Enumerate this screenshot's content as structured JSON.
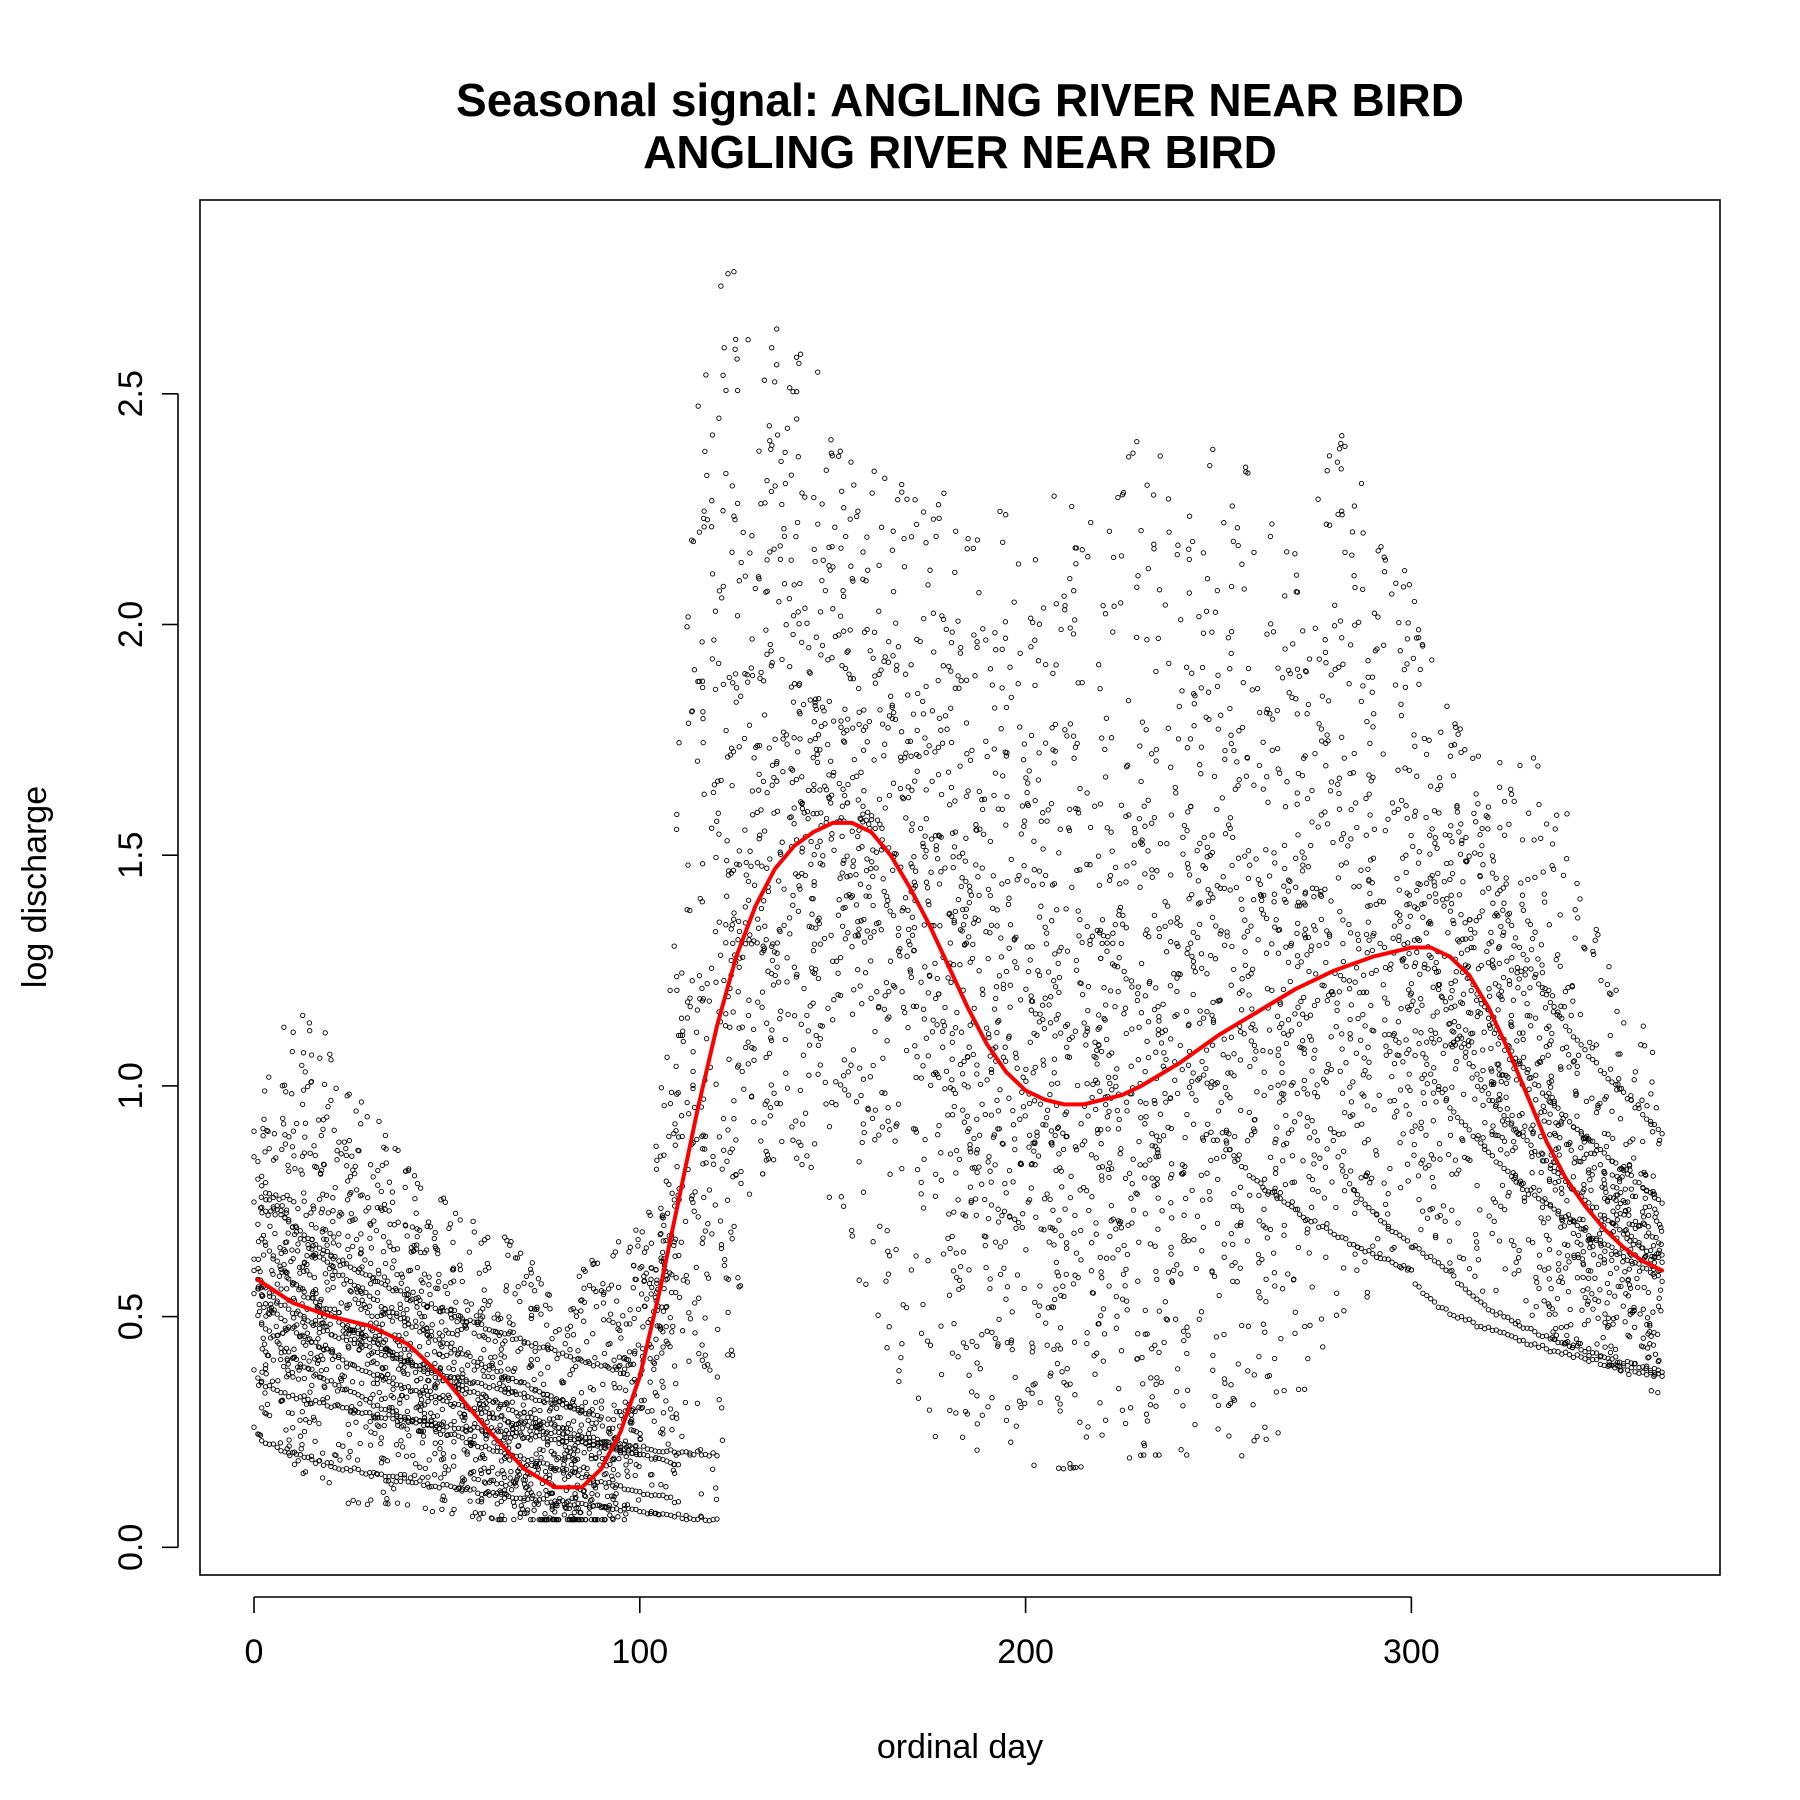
{
  "chart_data": {
    "type": "scatter",
    "title": "Seasonal signal: ANGLING RIVER NEAR BIRD",
    "subtitle": "ANGLING RIVER NEAR BIRD",
    "xlabel": "ordinal day",
    "ylabel": "log discharge",
    "xlim": [
      -14,
      380
    ],
    "ylim": [
      -0.06,
      2.92
    ],
    "xticks": [
      0,
      100,
      200,
      300
    ],
    "yticks": [
      0.0,
      0.5,
      1.0,
      1.5,
      2.0,
      2.5
    ],
    "xtick_labels": [
      "0",
      "100",
      "200",
      "300"
    ],
    "ytick_labels": [
      "0.0",
      "0.5",
      "1.0",
      "1.5",
      "2.0",
      "2.5"
    ],
    "grid": false,
    "point_color": "#000000",
    "curve_color": "#ff0000",
    "fit_curve": {
      "x": [
        1,
        10,
        20,
        30,
        40,
        50,
        60,
        70,
        78,
        85,
        90,
        95,
        100,
        105,
        110,
        115,
        120,
        125,
        130,
        135,
        140,
        145,
        150,
        155,
        160,
        165,
        170,
        175,
        180,
        185,
        190,
        195,
        200,
        205,
        210,
        215,
        220,
        225,
        230,
        240,
        250,
        260,
        270,
        280,
        290,
        300,
        305,
        310,
        315,
        320,
        325,
        330,
        335,
        340,
        345,
        350,
        355,
        360,
        365
      ],
      "y": [
        0.58,
        0.53,
        0.5,
        0.48,
        0.44,
        0.36,
        0.26,
        0.17,
        0.13,
        0.13,
        0.17,
        0.25,
        0.37,
        0.55,
        0.75,
        0.95,
        1.13,
        1.28,
        1.39,
        1.47,
        1.52,
        1.55,
        1.57,
        1.57,
        1.55,
        1.5,
        1.43,
        1.35,
        1.26,
        1.17,
        1.09,
        1.03,
        0.99,
        0.97,
        0.96,
        0.96,
        0.97,
        0.98,
        1.0,
        1.05,
        1.11,
        1.16,
        1.21,
        1.25,
        1.28,
        1.3,
        1.3,
        1.28,
        1.24,
        1.17,
        1.08,
        0.98,
        0.88,
        0.8,
        0.74,
        0.69,
        0.65,
        0.62,
        0.6
      ]
    },
    "scatter": {
      "num_points": 6200,
      "envelope": {
        "x": [
          0,
          10,
          20,
          30,
          40,
          50,
          60,
          70,
          80,
          90,
          100,
          105,
          110,
          115,
          120,
          125,
          130,
          140,
          150,
          160,
          170,
          180,
          190,
          200,
          210,
          220,
          230,
          240,
          250,
          260,
          270,
          280,
          290,
          300,
          310,
          320,
          330,
          340,
          350,
          360,
          365
        ],
        "upper": [
          0.95,
          1.2,
          1.1,
          0.95,
          0.85,
          0.75,
          0.7,
          0.65,
          0.55,
          0.65,
          0.7,
          0.9,
          1.75,
          2.5,
          2.75,
          2.8,
          2.65,
          2.7,
          2.45,
          2.35,
          2.3,
          2.3,
          2.25,
          2.25,
          2.3,
          2.2,
          2.45,
          2.3,
          2.4,
          2.4,
          2.2,
          2.45,
          2.3,
          2.1,
          1.8,
          1.7,
          1.75,
          1.6,
          1.3,
          1.15,
          1.05
        ],
        "lower": [
          0.25,
          0.12,
          0.1,
          0.09,
          0.08,
          0.07,
          0.06,
          0.06,
          0.06,
          0.06,
          0.06,
          0.06,
          0.06,
          0.06,
          0.06,
          0.5,
          0.8,
          0.85,
          0.75,
          0.5,
          0.3,
          0.2,
          0.2,
          0.18,
          0.17,
          0.18,
          0.2,
          0.2,
          0.2,
          0.17,
          0.25,
          0.5,
          0.55,
          0.6,
          0.58,
          0.52,
          0.48,
          0.44,
          0.4,
          0.36,
          0.3
        ]
      },
      "decay_tracks": [
        {
          "x0": 0,
          "x1": 120,
          "y0": 0.26,
          "y1": 0.06
        },
        {
          "x0": 0,
          "x1": 120,
          "y0": 0.38,
          "y1": 0.2
        },
        {
          "x0": 0,
          "x1": 110,
          "y0": 0.55,
          "y1": 0.1
        },
        {
          "x0": 0,
          "x1": 110,
          "y0": 0.6,
          "y1": 0.18
        },
        {
          "x0": 0,
          "x1": 100,
          "y0": 0.75,
          "y1": 0.2
        },
        {
          "x0": 0,
          "x1": 95,
          "y0": 0.85,
          "y1": 0.38
        },
        {
          "x0": 0,
          "x1": 90,
          "y0": 0.9,
          "y1": 0.28
        },
        {
          "x0": 0,
          "x1": 85,
          "y0": 0.62,
          "y1": 0.3
        },
        {
          "x0": 300,
          "x1": 365,
          "y0": 0.6,
          "y1": 0.37
        },
        {
          "x0": 310,
          "x1": 365,
          "y0": 0.62,
          "y1": 0.38
        },
        {
          "x0": 300,
          "x1": 365,
          "y0": 1.2,
          "y1": 0.58
        },
        {
          "x0": 305,
          "x1": 365,
          "y0": 1.35,
          "y1": 0.62
        },
        {
          "x0": 310,
          "x1": 365,
          "y0": 1.45,
          "y1": 0.75
        },
        {
          "x0": 320,
          "x1": 365,
          "y0": 1.6,
          "y1": 0.9
        },
        {
          "x0": 250,
          "x1": 300,
          "y0": 0.95,
          "y1": 0.6
        },
        {
          "x0": 280,
          "x1": 310,
          "y0": 0.9,
          "y1": 0.6
        }
      ]
    }
  }
}
